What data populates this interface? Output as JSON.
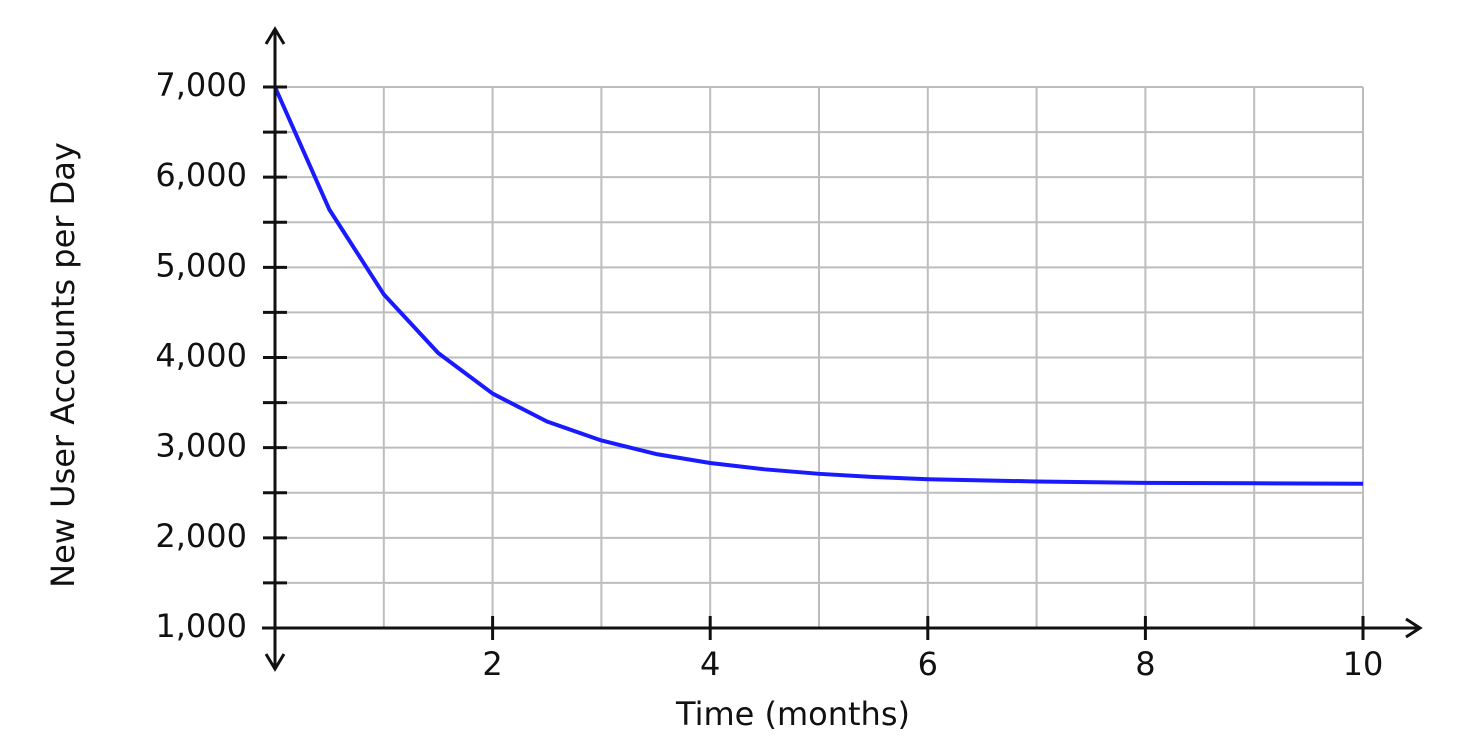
{
  "chart_data": {
    "type": "line",
    "x_label": "Time (months)",
    "y_label": "New User Accounts per Day",
    "x": [
      0,
      0.5,
      1,
      1.5,
      2,
      2.5,
      3,
      3.5,
      4,
      4.5,
      5,
      5.5,
      6,
      7,
      8,
      9,
      10
    ],
    "series": [
      {
        "color": "#1a1aff",
        "values": [
          7000,
          5640,
          4700,
          4050,
          3600,
          3290,
          3080,
          2930,
          2830,
          2760,
          2710,
          2675,
          2650,
          2625,
          2610,
          2605,
          2600
        ]
      }
    ],
    "xlim": [
      0,
      10
    ],
    "ylim": [
      1000,
      7000
    ],
    "xticks": [
      2,
      4,
      6,
      8,
      10
    ],
    "yticks": [
      {
        "value": 1000,
        "label": "1,000"
      },
      {
        "value": 2000,
        "label": "2,000"
      },
      {
        "value": 3000,
        "label": "3,000"
      },
      {
        "value": 4000,
        "label": "4,000"
      },
      {
        "value": 5000,
        "label": "5,000"
      },
      {
        "value": 6000,
        "label": "6,000"
      },
      {
        "value": 7000,
        "label": "7,000"
      }
    ],
    "xgrid": [
      1,
      2,
      3,
      4,
      5,
      6,
      7,
      8,
      9,
      10
    ],
    "ygrid": [
      1500,
      2000,
      2500,
      3000,
      3500,
      4000,
      4500,
      5000,
      5500,
      6000,
      6500,
      7000
    ],
    "grid": true
  }
}
